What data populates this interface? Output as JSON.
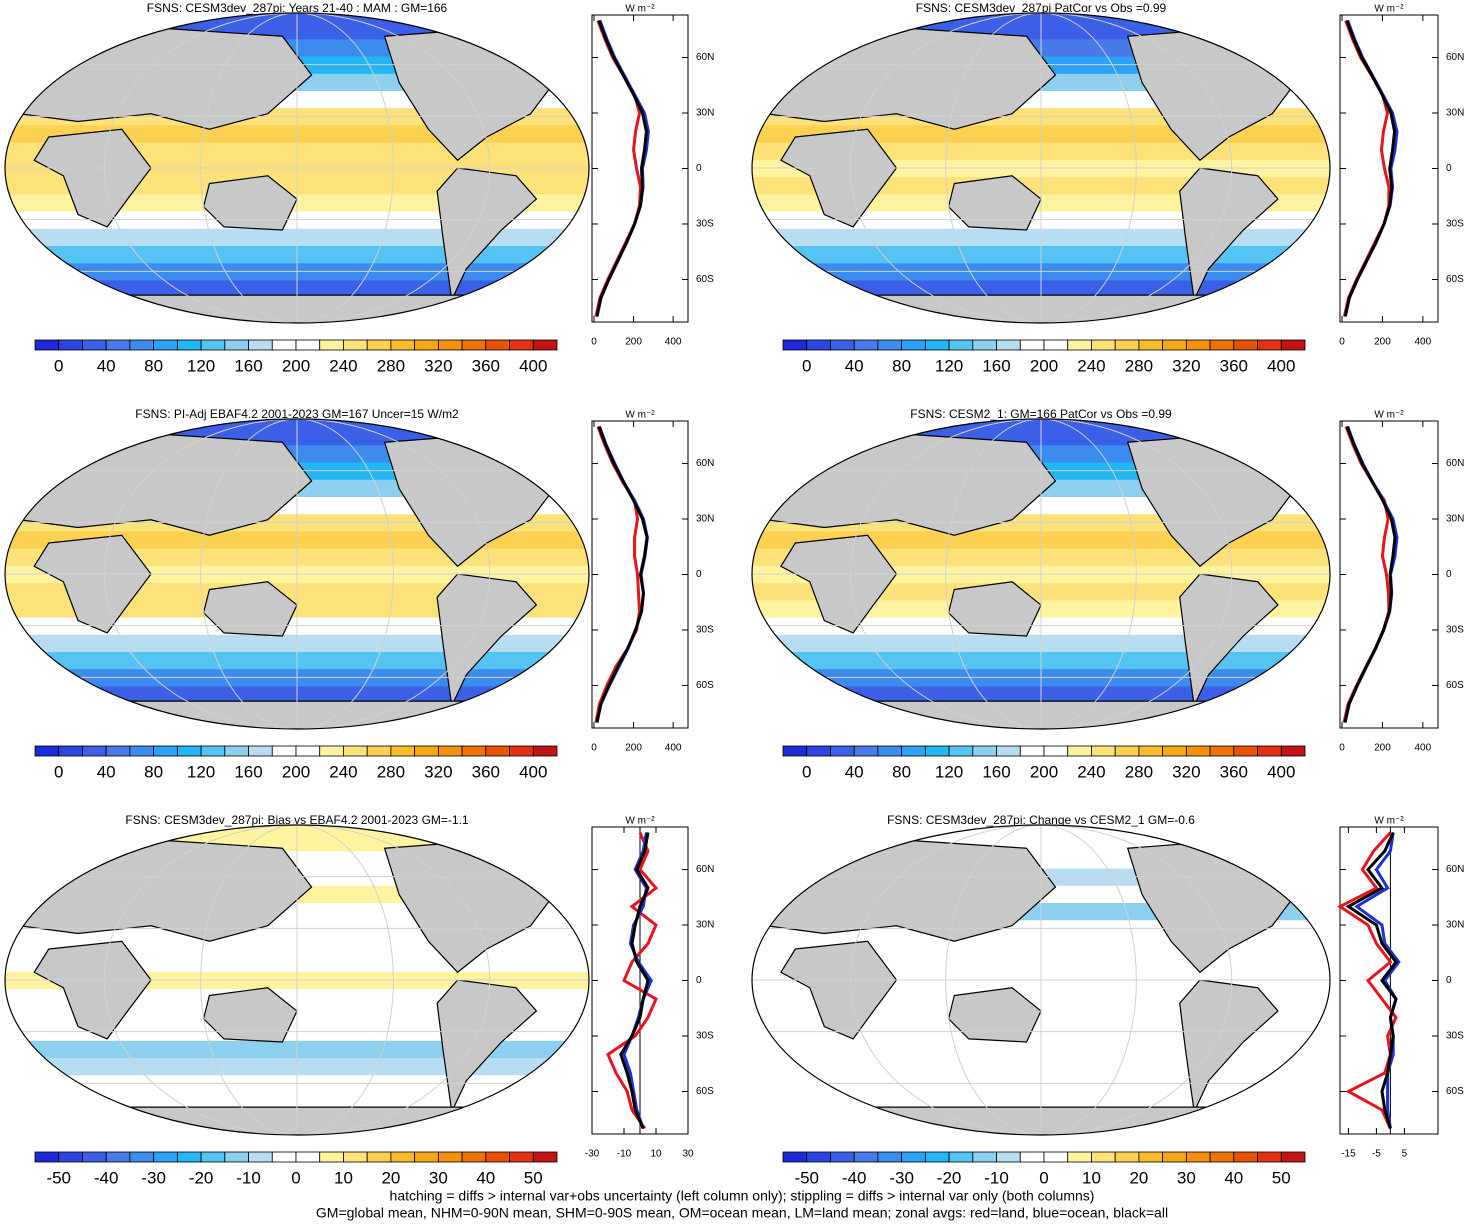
{
  "chart_data": [
    {
      "type": "map",
      "title": "FSNS: CESM3dev_287pi: Years 21-40 : MAM : GM=166",
      "colors": [
        "#1c2bd9",
        "#2a45e0",
        "#3b5fe6",
        "#4a79ea",
        "#3c8cf0",
        "#2ba2f5",
        "#22b6f5",
        "#55c4f2",
        "#8ccfee",
        "#b6ddf2",
        "#ffffff",
        "#ffffff",
        "#fff3a0",
        "#fde27a",
        "#fcd050",
        "#f9bc2a",
        "#f6a715",
        "#f3900c",
        "#ee7208",
        "#e85205",
        "#e23212",
        "#c41313"
      ],
      "clim": [
        -20,
        420
      ],
      "colorbar_ticks": [
        0,
        40,
        80,
        120,
        160,
        200,
        240,
        280,
        320,
        360,
        400
      ],
      "units": "W m⁻²",
      "latitudes": [
        -80,
        -70,
        -60,
        -50,
        -40,
        -30,
        -20,
        -10,
        0,
        10,
        20,
        30,
        40,
        50,
        60,
        70,
        80
      ],
      "series": [
        {
          "name": "land",
          "color": "#e8141e",
          "values": [
            10,
            30,
            70,
            115,
            160,
            205,
            230,
            235,
            215,
            200,
            210,
            230,
            205,
            150,
            95,
            55,
            20
          ]
        },
        {
          "name": "ocean",
          "color": "#1f2fd6",
          "values": [
            15,
            35,
            75,
            120,
            165,
            205,
            235,
            248,
            245,
            265,
            275,
            255,
            205,
            155,
            105,
            65,
            30
          ]
        },
        {
          "name": "all",
          "color": "#000000",
          "values": [
            15,
            35,
            75,
            120,
            165,
            205,
            235,
            245,
            240,
            255,
            265,
            245,
            200,
            150,
            100,
            60,
            25
          ]
        }
      ],
      "xlim": [
        -10,
        475
      ],
      "xticks": [
        0,
        200,
        400
      ],
      "ylim": [
        -83,
        83
      ],
      "yticks": [
        {
          "value": 60,
          "label": "60N"
        },
        {
          "value": 30,
          "label": "30N"
        },
        0,
        {
          "value": -30,
          "label": "30S"
        },
        {
          "value": -60,
          "label": "60S"
        }
      ]
    },
    {
      "type": "map",
      "title": "FSNS: CESM3dev_287pi PatCor vs Obs =0.99",
      "colors": [
        "#1c2bd9",
        "#2a45e0",
        "#3b5fe6",
        "#4a79ea",
        "#3c8cf0",
        "#2ba2f5",
        "#22b6f5",
        "#55c4f2",
        "#8ccfee",
        "#b6ddf2",
        "#ffffff",
        "#ffffff",
        "#fff3a0",
        "#fde27a",
        "#fcd050",
        "#f9bc2a",
        "#f6a715",
        "#f3900c",
        "#ee7208",
        "#e85205",
        "#e23212",
        "#c41313"
      ],
      "clim": [
        -20,
        420
      ],
      "colorbar_ticks": [
        0,
        40,
        80,
        120,
        160,
        200,
        240,
        280,
        320,
        360,
        400
      ],
      "units": "W m⁻²",
      "latitudes": [
        -80,
        -70,
        -60,
        -50,
        -40,
        -30,
        -20,
        -10,
        0,
        10,
        20,
        30,
        40,
        50,
        60,
        70,
        80
      ],
      "series": [
        {
          "name": "land",
          "color": "#e8141e",
          "values": [
            12,
            32,
            72,
            118,
            162,
            208,
            232,
            232,
            210,
            195,
            205,
            225,
            200,
            148,
            92,
            52,
            18
          ]
        },
        {
          "name": "ocean",
          "color": "#1f2fd6",
          "values": [
            16,
            36,
            76,
            122,
            168,
            208,
            238,
            250,
            242,
            262,
            272,
            250,
            202,
            152,
            102,
            62,
            28
          ]
        },
        {
          "name": "all",
          "color": "#000000",
          "values": [
            16,
            36,
            76,
            122,
            168,
            208,
            236,
            246,
            236,
            250,
            260,
            242,
            198,
            150,
            98,
            58,
            24
          ]
        }
      ],
      "xlim": [
        -10,
        475
      ],
      "xticks": [
        0,
        200,
        400
      ],
      "ylim": [
        -83,
        83
      ],
      "yticks": [
        {
          "value": 60,
          "label": "60N"
        },
        {
          "value": 30,
          "label": "30N"
        },
        0,
        {
          "value": -30,
          "label": "30S"
        },
        {
          "value": -60,
          "label": "60S"
        }
      ]
    },
    {
      "type": "map",
      "title": "FSNS: PI-Adj EBAF4.2 2001-2023 GM=167 Uncer=15 W/m2",
      "colors": [
        "#1c2bd9",
        "#2a45e0",
        "#3b5fe6",
        "#4a79ea",
        "#3c8cf0",
        "#2ba2f5",
        "#22b6f5",
        "#55c4f2",
        "#8ccfee",
        "#b6ddf2",
        "#ffffff",
        "#ffffff",
        "#fff3a0",
        "#fde27a",
        "#fcd050",
        "#f9bc2a",
        "#f6a715",
        "#f3900c",
        "#ee7208",
        "#e85205",
        "#e23212",
        "#c41313"
      ],
      "clim": [
        -20,
        420
      ],
      "colorbar_ticks": [
        0,
        40,
        80,
        120,
        160,
        200,
        240,
        280,
        320,
        360,
        400
      ],
      "units": "W m⁻²",
      "latitudes": [
        -80,
        -70,
        -60,
        -50,
        -40,
        -30,
        -20,
        -10,
        0,
        10,
        20,
        30,
        40,
        50,
        60,
        70,
        80
      ],
      "series": [
        {
          "name": "land",
          "color": "#e8141e",
          "values": [
            10,
            28,
            65,
            110,
            170,
            215,
            230,
            225,
            220,
            205,
            205,
            220,
            205,
            145,
            95,
            55,
            20
          ]
        },
        {
          "name": "ocean",
          "color": "#1f2fd6",
          "values": [
            15,
            35,
            78,
            125,
            172,
            210,
            240,
            250,
            238,
            258,
            270,
            250,
            205,
            150,
            105,
            62,
            28
          ]
        },
        {
          "name": "all",
          "color": "#000000",
          "values": [
            15,
            35,
            75,
            120,
            170,
            210,
            240,
            250,
            235,
            255,
            268,
            245,
            200,
            150,
            100,
            60,
            25
          ]
        }
      ],
      "xlim": [
        -10,
        475
      ],
      "xticks": [
        0,
        200,
        400
      ],
      "ylim": [
        -83,
        83
      ],
      "yticks": [
        {
          "value": 60,
          "label": "60N"
        },
        {
          "value": 30,
          "label": "30N"
        },
        0,
        {
          "value": -30,
          "label": "30S"
        },
        {
          "value": -60,
          "label": "60S"
        }
      ]
    },
    {
      "type": "map",
      "title": "FSNS: CESM2_1: GM=166 PatCor vs Obs =0.99",
      "colors": [
        "#1c2bd9",
        "#2a45e0",
        "#3b5fe6",
        "#4a79ea",
        "#3c8cf0",
        "#2ba2f5",
        "#22b6f5",
        "#55c4f2",
        "#8ccfee",
        "#b6ddf2",
        "#ffffff",
        "#ffffff",
        "#fff3a0",
        "#fde27a",
        "#fcd050",
        "#f9bc2a",
        "#f6a715",
        "#f3900c",
        "#ee7208",
        "#e85205",
        "#e23212",
        "#c41313"
      ],
      "clim": [
        -20,
        420
      ],
      "colorbar_ticks": [
        0,
        40,
        80,
        120,
        160,
        200,
        240,
        280,
        320,
        360,
        400
      ],
      "units": "W m⁻²",
      "latitudes": [
        -80,
        -70,
        -60,
        -50,
        -40,
        -30,
        -20,
        -10,
        0,
        10,
        20,
        30,
        40,
        50,
        60,
        70,
        80
      ],
      "series": [
        {
          "name": "land",
          "color": "#e8141e",
          "values": [
            10,
            30,
            72,
            118,
            165,
            205,
            232,
            230,
            220,
            200,
            210,
            228,
            210,
            150,
            95,
            55,
            20
          ]
        },
        {
          "name": "ocean",
          "color": "#1f2fd6",
          "values": [
            15,
            35,
            76,
            120,
            166,
            206,
            236,
            246,
            240,
            262,
            272,
            252,
            205,
            152,
            103,
            62,
            28
          ]
        },
        {
          "name": "all",
          "color": "#000000",
          "values": [
            15,
            35,
            75,
            120,
            166,
            206,
            235,
            244,
            238,
            252,
            262,
            244,
            202,
            150,
            100,
            60,
            25
          ]
        }
      ],
      "xlim": [
        -10,
        475
      ],
      "xticks": [
        0,
        200,
        400
      ],
      "ylim": [
        -83,
        83
      ],
      "yticks": [
        {
          "value": 60,
          "label": "60N"
        },
        {
          "value": 30,
          "label": "30N"
        },
        0,
        {
          "value": -30,
          "label": "30S"
        },
        {
          "value": -60,
          "label": "60S"
        }
      ]
    },
    {
      "type": "map",
      "title": "FSNS: CESM3dev_287pi: Bias vs EBAF4.2 2001-2023 GM=-1.1",
      "colors": [
        "#1c2bd9",
        "#2a45e0",
        "#3b5fe6",
        "#4a79ea",
        "#3c8cf0",
        "#2ba2f5",
        "#22b6f5",
        "#55c4f2",
        "#8ccfee",
        "#b6ddf2",
        "#ffffff",
        "#ffffff",
        "#fff3a0",
        "#fde27a",
        "#fcd050",
        "#f9bc2a",
        "#f6a715",
        "#f3900c",
        "#ee7208",
        "#e85205",
        "#e23212",
        "#c41313"
      ],
      "clim": [
        -55,
        55
      ],
      "colorbar_ticks": [
        -50,
        -40,
        -30,
        -20,
        -10,
        0,
        10,
        20,
        30,
        40,
        50
      ],
      "units": "W m⁻²",
      "latitudes": [
        -80,
        -70,
        -60,
        -50,
        -40,
        -30,
        -20,
        -10,
        0,
        10,
        20,
        30,
        40,
        50,
        60,
        70,
        80
      ],
      "series": [
        {
          "name": "land",
          "color": "#e8141e",
          "values": [
            3,
            -5,
            -8,
            -15,
            -20,
            -3,
            5,
            10,
            -10,
            -5,
            5,
            10,
            -5,
            10,
            0,
            5,
            0
          ]
        },
        {
          "name": "ocean",
          "color": "#1f2fd6",
          "values": [
            2,
            -2,
            -4,
            -6,
            -10,
            -5,
            -1,
            2,
            7,
            -1,
            -6,
            -4,
            2,
            4,
            -3,
            2,
            4
          ]
        },
        {
          "name": "all",
          "color": "#000000",
          "values": [
            2,
            -3,
            -5,
            -8,
            -12,
            -5,
            0,
            2,
            5,
            -2,
            -5,
            -3,
            0,
            5,
            -2,
            3,
            5
          ]
        }
      ],
      "xlim": [
        -30,
        30
      ],
      "xticks": [
        -30,
        -10,
        10,
        30
      ],
      "ylim": [
        -83,
        83
      ],
      "zero_line": true,
      "yticks": [
        {
          "value": 60,
          "label": "60N"
        },
        {
          "value": 30,
          "label": "30N"
        },
        0,
        {
          "value": -30,
          "label": "30S"
        },
        {
          "value": -60,
          "label": "60S"
        }
      ]
    },
    {
      "type": "map",
      "title": "FSNS: CESM3dev_287pi: Change vs CESM2_1 GM=-0.6",
      "colors": [
        "#1c2bd9",
        "#2a45e0",
        "#3b5fe6",
        "#4a79ea",
        "#3c8cf0",
        "#2ba2f5",
        "#22b6f5",
        "#55c4f2",
        "#8ccfee",
        "#b6ddf2",
        "#ffffff",
        "#ffffff",
        "#fff3a0",
        "#fde27a",
        "#fcd050",
        "#f9bc2a",
        "#f6a715",
        "#f3900c",
        "#ee7208",
        "#e85205",
        "#e23212",
        "#c41313"
      ],
      "clim": [
        -55,
        55
      ],
      "colorbar_ticks": [
        -50,
        -40,
        -30,
        -20,
        -10,
        0,
        10,
        20,
        30,
        40,
        50
      ],
      "units": "W m⁻²",
      "latitudes": [
        -80,
        -70,
        -60,
        -50,
        -40,
        -30,
        -20,
        -10,
        0,
        10,
        20,
        30,
        40,
        50,
        60,
        70,
        80
      ],
      "series": [
        {
          "name": "land",
          "color": "#e8141e",
          "values": [
            0,
            -3,
            -15,
            -2,
            0,
            -1,
            2,
            -3,
            -8,
            0,
            -5,
            -8,
            -18,
            -5,
            -10,
            -6,
            0
          ]
        },
        {
          "name": "ocean",
          "color": "#1f2fd6",
          "values": [
            0,
            -1,
            -1,
            -1,
            1,
            1,
            0,
            2,
            -2,
            3,
            -2,
            -3,
            -12,
            -1,
            -5,
            0,
            1
          ]
        },
        {
          "name": "all",
          "color": "#000000",
          "values": [
            0,
            -2,
            -3,
            -1,
            0,
            1,
            0,
            2,
            -3,
            2,
            -3,
            -5,
            -15,
            -3,
            -8,
            -2,
            1
          ]
        }
      ],
      "xlim": [
        -18,
        17
      ],
      "xticks": [
        -15,
        -5,
        5
      ],
      "ylim": [
        -83,
        83
      ],
      "zero_line": true,
      "yticks": [
        {
          "value": 60,
          "label": "60N"
        },
        {
          "value": 30,
          "label": "30N"
        },
        0,
        {
          "value": -30,
          "label": "30S"
        },
        {
          "value": -60,
          "label": "60S"
        }
      ]
    }
  ],
  "footer": [
    "hatching = diffs > internal var+obs uncertainty (left column only); stippling = diffs > internal var only (both columns)",
    "GM=global mean, NHM=0-90N mean, SHM=0-90S mean, OM=ocean mean, LM=land mean; zonal avgs: red=land, blue=ocean, black=all"
  ]
}
